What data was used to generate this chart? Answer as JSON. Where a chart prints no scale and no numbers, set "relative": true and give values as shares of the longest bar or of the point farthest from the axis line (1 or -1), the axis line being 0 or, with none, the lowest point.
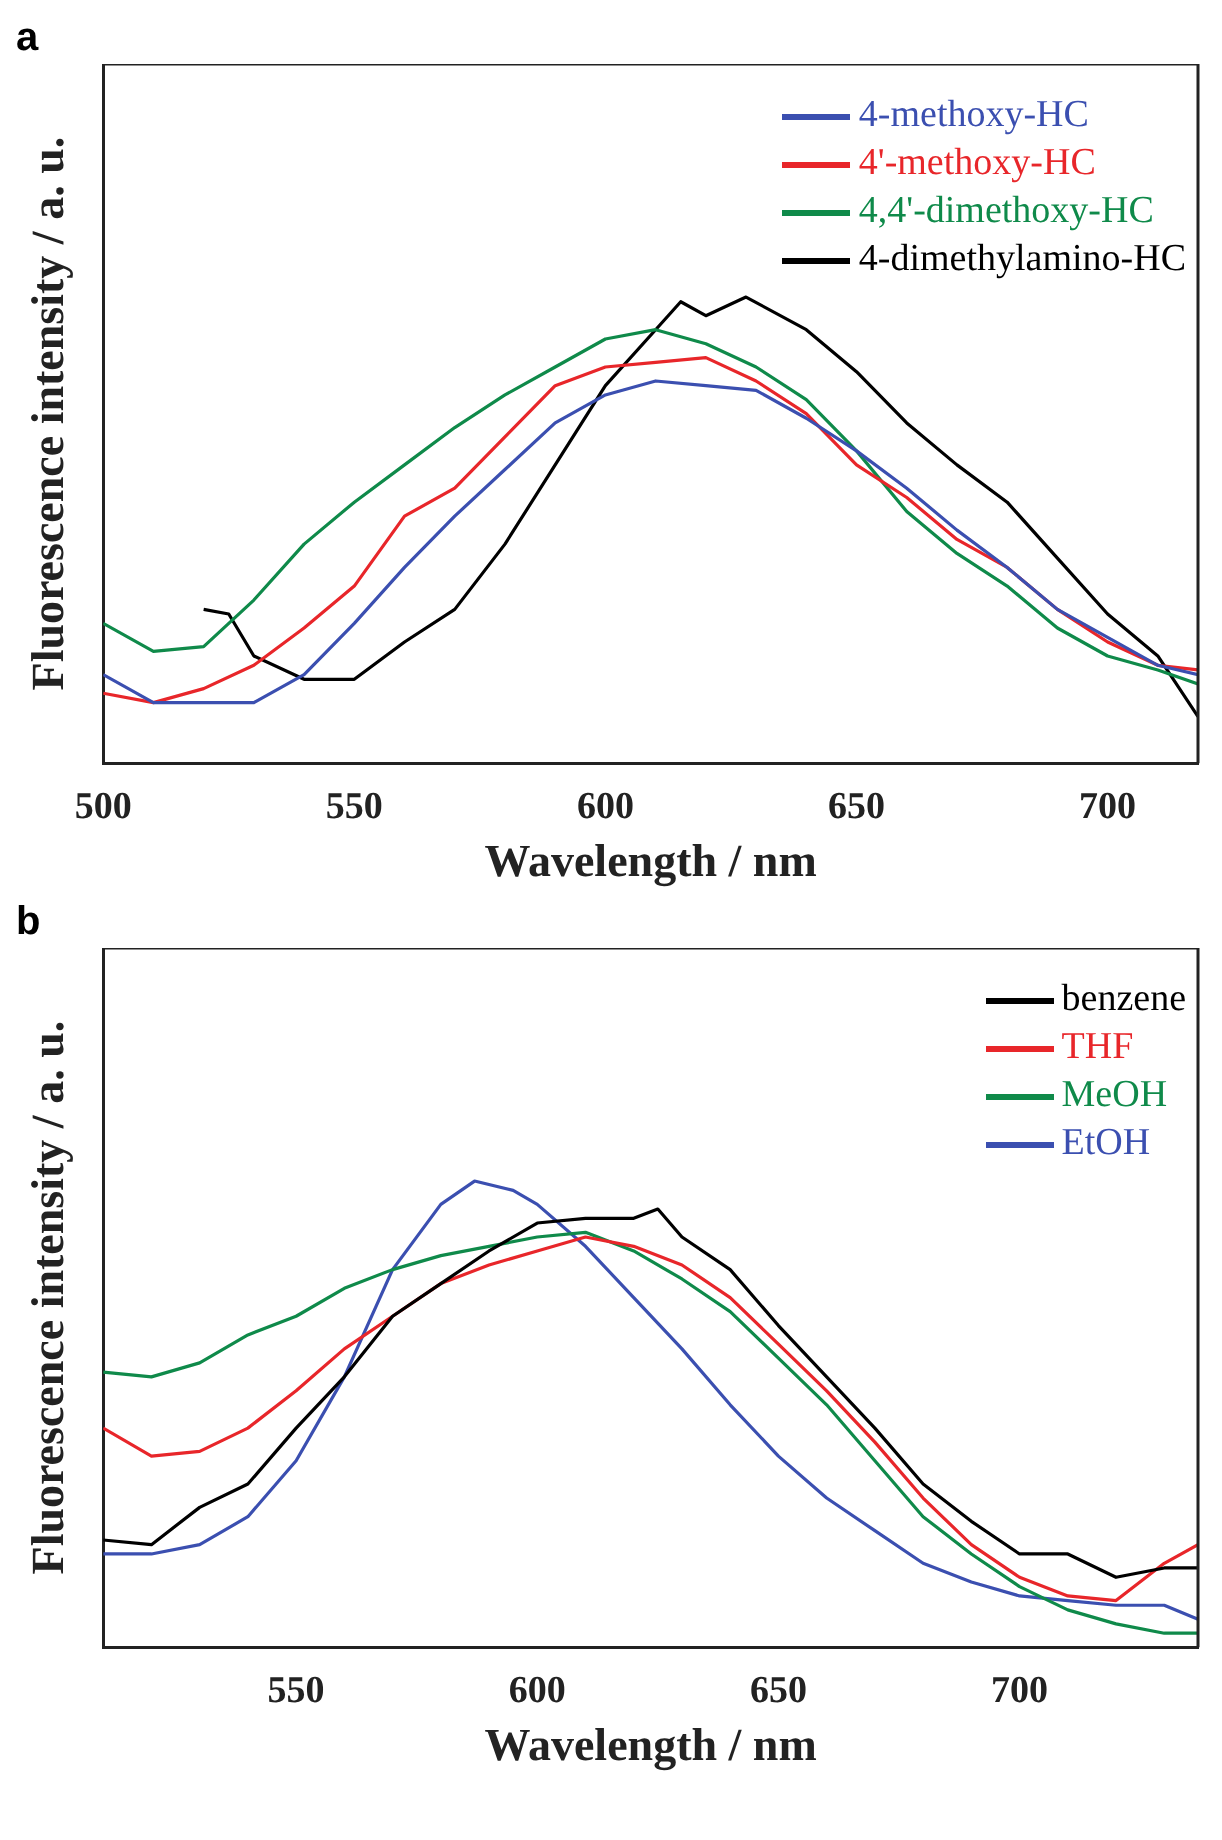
{
  "chart_data": [
    {
      "type": "line",
      "annotations": [
        "a"
      ],
      "xlabel": "Wavelength / nm",
      "ylabel": "Fluorescence intensity / a. u.",
      "relative": true,
      "xlim": [
        500,
        718
      ],
      "xticks": [
        500,
        550,
        600,
        650,
        700
      ],
      "legend": "top right",
      "grid": false,
      "marker": "none",
      "line_style": "solid",
      "x": [
        500,
        510,
        520,
        530,
        540,
        550,
        560,
        570,
        580,
        590,
        600,
        610,
        620,
        630,
        640,
        650,
        660,
        670,
        680,
        690,
        700,
        710,
        718
      ],
      "series": [
        {
          "name": "4-methoxy-HC",
          "color": "#3b4fb0",
          "values": [
            0.19,
            0.13,
            0.13,
            0.13,
            0.19,
            0.3,
            0.42,
            0.53,
            0.63,
            0.73,
            0.79,
            0.82,
            0.81,
            0.8,
            0.74,
            0.67,
            0.59,
            0.5,
            0.42,
            0.33,
            0.27,
            0.21,
            0.19
          ]
        },
        {
          "name": "4'-methoxy-HC",
          "color": "#e8262a",
          "values": [
            0.15,
            0.13,
            0.16,
            0.21,
            0.29,
            0.38,
            0.53,
            0.59,
            0.7,
            0.81,
            0.85,
            0.86,
            0.87,
            0.82,
            0.75,
            0.64,
            0.57,
            0.48,
            0.42,
            0.33,
            0.26,
            0.21,
            0.2
          ]
        },
        {
          "name": "4,4'-dimethoxy-HC",
          "color": "#0f8a4a",
          "values": [
            0.3,
            0.24,
            0.25,
            0.35,
            0.47,
            0.56,
            0.64,
            0.72,
            0.79,
            0.85,
            0.91,
            0.93,
            0.9,
            0.85,
            0.78,
            0.67,
            0.54,
            0.45,
            0.38,
            0.29,
            0.23,
            0.2,
            0.17
          ]
        },
        {
          "name": "4-dimethylamino-HC",
          "color": "#000000",
          "x": [
            520,
            525,
            530,
            540,
            550,
            560,
            570,
            580,
            590,
            600,
            610,
            615,
            620,
            628,
            640,
            650,
            660,
            670,
            680,
            690,
            700,
            710,
            718
          ],
          "values": [
            0.33,
            0.32,
            0.23,
            0.18,
            0.18,
            0.26,
            0.33,
            0.47,
            0.64,
            0.81,
            0.93,
            0.99,
            0.96,
            1,
            0.93,
            0.84,
            0.73,
            0.64,
            0.56,
            0.44,
            0.32,
            0.23,
            0.1
          ]
        }
      ]
    },
    {
      "type": "line",
      "annotations": [
        "b"
      ],
      "xlabel": "Wavelength / nm",
      "ylabel": "Fluorescence intensity / a. u.",
      "relative": true,
      "xlim": [
        510,
        737
      ],
      "xticks": [
        550,
        600,
        650,
        700
      ],
      "legend": "top right",
      "grid": false,
      "marker": "none",
      "line_style": "solid",
      "x": [
        510,
        520,
        530,
        540,
        550,
        560,
        570,
        580,
        590,
        600,
        610,
        620,
        630,
        640,
        650,
        660,
        670,
        680,
        690,
        700,
        710,
        720,
        730,
        737
      ],
      "series": [
        {
          "name": "benzene",
          "color": "#000000",
          "x": [
            510,
            520,
            530,
            540,
            550,
            560,
            570,
            580,
            590,
            600,
            610,
            620,
            625,
            630,
            640,
            650,
            660,
            670,
            680,
            690,
            700,
            710,
            720,
            730,
            737
          ],
          "values": [
            0.23,
            0.22,
            0.3,
            0.35,
            0.47,
            0.58,
            0.71,
            0.78,
            0.85,
            0.91,
            0.92,
            0.92,
            0.94,
            0.88,
            0.81,
            0.69,
            0.58,
            0.47,
            0.35,
            0.27,
            0.2,
            0.2,
            0.15,
            0.17,
            0.17
          ]
        },
        {
          "name": "THF",
          "color": "#e8262a",
          "values": [
            0.47,
            0.41,
            0.42,
            0.47,
            0.55,
            0.64,
            0.71,
            0.78,
            0.82,
            0.85,
            0.88,
            0.86,
            0.82,
            0.75,
            0.65,
            0.55,
            0.44,
            0.32,
            0.22,
            0.15,
            0.11,
            0.1,
            0.18,
            0.22
          ]
        },
        {
          "name": "MeOH",
          "color": "#0f8a4a",
          "values": [
            0.59,
            0.58,
            0.61,
            0.67,
            0.71,
            0.77,
            0.81,
            0.84,
            0.86,
            0.88,
            0.89,
            0.85,
            0.79,
            0.72,
            0.62,
            0.52,
            0.4,
            0.28,
            0.2,
            0.13,
            0.08,
            0.05,
            0.03,
            0.03
          ]
        },
        {
          "name": "EtOH",
          "color": "#3b4fb0",
          "x": [
            510,
            520,
            530,
            540,
            550,
            560,
            570,
            580,
            587,
            595,
            600,
            610,
            620,
            630,
            640,
            650,
            660,
            670,
            680,
            690,
            700,
            710,
            720,
            730,
            737
          ],
          "values": [
            0.2,
            0.2,
            0.22,
            0.28,
            0.4,
            0.58,
            0.81,
            0.95,
            1,
            0.98,
            0.95,
            0.86,
            0.75,
            0.64,
            0.52,
            0.41,
            0.32,
            0.25,
            0.18,
            0.14,
            0.11,
            0.1,
            0.09,
            0.09,
            0.06
          ]
        }
      ]
    }
  ]
}
